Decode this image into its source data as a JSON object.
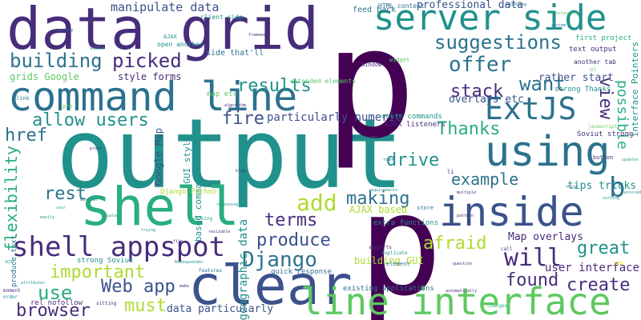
{
  "colors": {
    "background": "#ffffff",
    "palette": [
      "#440154",
      "#472d7b",
      "#3b528b",
      "#2c728e",
      "#21918c",
      "#28ae80",
      "#5ec962",
      "#addc30",
      "#fde725"
    ]
  },
  "words": [
    {
      "text": "output",
      "color": "#21918c"
    },
    {
      "text": "data grid",
      "color": "#472d7b"
    },
    {
      "text": "command line",
      "color": "#2c728e"
    },
    {
      "text": "p",
      "color": "#440154"
    },
    {
      "text": "p",
      "color": "#440154"
    },
    {
      "text": "shell",
      "color": "#28ae80"
    },
    {
      "text": "clear",
      "color": "#3b528b"
    },
    {
      "text": "inside",
      "color": "#3b528b"
    },
    {
      "text": "using",
      "color": "#2c728e"
    },
    {
      "text": "server side",
      "color": "#21918c"
    },
    {
      "text": "line interface",
      "color": "#5ec962"
    },
    {
      "text": "shell appspot",
      "color": "#472d7b"
    },
    {
      "text": "ExtJS",
      "color": "#2c728e"
    },
    {
      "text": "building",
      "color": "#2c728e"
    },
    {
      "text": "picked",
      "color": "#472d7b"
    },
    {
      "text": "suggestions",
      "color": "#2c728e"
    },
    {
      "text": "offer",
      "color": "#2c728e"
    },
    {
      "text": "want",
      "color": "#2c728e"
    },
    {
      "text": "results",
      "color": "#21918c"
    },
    {
      "text": "stack",
      "color": "#472d7b"
    },
    {
      "text": "allow users",
      "color": "#21918c"
    },
    {
      "text": "fire",
      "color": "#3b528b"
    },
    {
      "text": "Thanks",
      "color": "#28ae80"
    },
    {
      "text": "view",
      "color": "#472d7b"
    },
    {
      "text": "possible",
      "color": "#28ae80"
    },
    {
      "text": "href",
      "color": "#2c728e"
    },
    {
      "text": "drive",
      "color": "#21918c"
    },
    {
      "text": "example",
      "color": "#2c728e"
    },
    {
      "text": "add",
      "color": "#addc30"
    },
    {
      "text": "rest",
      "color": "#2c728e"
    },
    {
      "text": "terms",
      "color": "#472d7b"
    },
    {
      "text": "making",
      "color": "#2c728e"
    },
    {
      "text": "produce",
      "color": "#3b528b"
    },
    {
      "text": "Django",
      "color": "#2c728e"
    },
    {
      "text": "important",
      "color": "#addc30"
    },
    {
      "text": "afraid",
      "color": "#addc30"
    },
    {
      "text": "will",
      "color": "#472d7b"
    },
    {
      "text": "great",
      "color": "#21918c"
    },
    {
      "text": "use",
      "color": "#28ae80"
    },
    {
      "text": "Web app",
      "color": "#3b528b"
    },
    {
      "text": "found",
      "color": "#472d7b"
    },
    {
      "text": "create",
      "color": "#472d7b"
    },
    {
      "text": "browser",
      "color": "#472d7b"
    },
    {
      "text": "must",
      "color": "#addc30"
    },
    {
      "text": "flexibility",
      "color": "#28ae80"
    },
    {
      "text": "b",
      "color": "#2c728e"
    },
    {
      "text": "manipulate data",
      "color": "#3b528b"
    },
    {
      "text": "professional data",
      "color": "#3b528b"
    },
    {
      "text": "particularly numeric",
      "color": "#3b528b"
    },
    {
      "text": "Map overlays",
      "color": "#472d7b"
    },
    {
      "text": "user interface",
      "color": "#472d7b"
    },
    {
      "text": "tips tricks",
      "color": "#21918c"
    },
    {
      "text": "geographic data",
      "color": "#21918c"
    },
    {
      "text": "Google Map",
      "color": "#3b528b"
    },
    {
      "text": "overlays etc",
      "color": "#3b528b"
    },
    {
      "text": "rather start",
      "color": "#3b528b"
    },
    {
      "text": "interface Pointers",
      "color": "#21918c"
    },
    {
      "text": "grids Google",
      "color": "#5ec962"
    },
    {
      "text": "style forms",
      "color": "#472d7b"
    },
    {
      "text": "data particularly",
      "color": "#3b528b"
    },
    {
      "text": "building GUI",
      "color": "#addc30"
    },
    {
      "text": "GUI style",
      "color": "#21918c"
    },
    {
      "text": "based command",
      "color": "#21918c"
    },
    {
      "text": "AJAX based",
      "color": "#addc30"
    },
    {
      "text": "feed back",
      "color": "#2c728e"
    },
    {
      "text": "client side",
      "color": "#21918c"
    },
    {
      "text": "side that'll",
      "color": "#2c728e"
    },
    {
      "text": "first project",
      "color": "#28ae80"
    },
    {
      "text": "text output",
      "color": "#472d7b"
    },
    {
      "text": "strong Thanks",
      "color": "#21918c"
    },
    {
      "text": "Soviut strong",
      "color": "#472d7b"
    },
    {
      "text": "strong Soviut",
      "color": "#21918c"
    },
    {
      "text": "rel nofollow",
      "color": "#472d7b"
    },
    {
      "text": "produce text",
      "color": "#2c728e"
    },
    {
      "text": "quick response",
      "color": "#2c728e"
    },
    {
      "text": "existing applications",
      "color": "#2c728e"
    },
    {
      "text": "extra functions",
      "color": "#21918c"
    },
    {
      "text": "AJAX listeners",
      "color": "#472d7b"
    },
    {
      "text": "route commands",
      "color": "#21918c"
    },
    {
      "text": "Django Python",
      "color": "#addc30"
    },
    {
      "text": "map etc",
      "color": "#5ec962"
    },
    {
      "text": "open another",
      "color": "#21918c"
    },
    {
      "text": "extended elements",
      "color": "#5ec962"
    },
    {
      "text": "HTML content",
      "color": "#2c728e"
    },
    {
      "text": "another tab",
      "color": "#472d7b"
    },
    {
      "text": "Window",
      "color": "#472d7b"
    },
    {
      "text": "widget",
      "color": "#5ec962"
    },
    {
      "text": "AJAX",
      "color": "#21918c"
    },
    {
      "text": "store",
      "color": "#2c728e"
    },
    {
      "text": "button",
      "color": "#472d7b"
    },
    {
      "text": "link",
      "color": "#21918c"
    },
    {
      "text": "element",
      "color": "#2c728e"
    },
    {
      "text": "supports",
      "color": "#472d7b"
    },
    {
      "text": "sitting",
      "color": "#472d7b"
    },
    {
      "text": "duplicate",
      "color": "#21918c"
    },
    {
      "text": "working",
      "color": "#28ae80"
    },
    {
      "text": "features",
      "color": "#2c728e"
    },
    {
      "text": "javascript",
      "color": "#5ec962"
    },
    {
      "text": "changes",
      "color": "#28ae80"
    },
    {
      "text": "restored",
      "color": "#21918c"
    },
    {
      "text": "moment",
      "color": "#472d7b"
    },
    {
      "text": "order",
      "color": "#21918c"
    },
    {
      "text": "scale",
      "color": "#21918c"
    },
    {
      "text": "framework",
      "color": "#472d7b"
    },
    {
      "text": "extending",
      "color": "#5ec962"
    },
    {
      "text": "system",
      "color": "#2c728e"
    },
    {
      "text": "tab",
      "color": "#fde725"
    },
    {
      "text": "ol",
      "color": "#5ec962"
    },
    {
      "text": "li",
      "color": "#472d7b"
    },
    {
      "text": "pre",
      "color": "#5ec962"
    },
    {
      "text": "call",
      "color": "#472d7b"
    },
    {
      "text": "Roadspoonder",
      "color": "#21918c"
    },
    {
      "text": "algorithm",
      "color": "#472d7b"
    },
    {
      "text": "requirements",
      "color": "#21918c"
    },
    {
      "text": "automatically",
      "color": "#472d7b"
    },
    {
      "text": "multiple",
      "color": "#472d7b"
    },
    {
      "text": "question",
      "color": "#472d7b"
    },
    {
      "text": "attributes",
      "color": "#21918c"
    },
    {
      "text": "ascending",
      "color": "#2c728e"
    },
    {
      "text": "sorting",
      "color": "#21918c"
    },
    {
      "text": "thing",
      "color": "#2c728e"
    },
    {
      "text": "updates",
      "color": "#28ae80"
    },
    {
      "text": "pattern",
      "color": "#472d7b"
    },
    {
      "text": "discussing",
      "color": "#2c728e"
    },
    {
      "text": "reasoning",
      "color": "#21918c"
    },
    {
      "text": "resizable",
      "color": "#472d7b"
    },
    {
      "text": "dialog",
      "color": "#21918c"
    },
    {
      "text": "round",
      "color": "#2c728e"
    },
    {
      "text": "proof",
      "color": "#472d7b"
    },
    {
      "text": "mention",
      "color": "#2c728e"
    },
    {
      "text": "easily",
      "color": "#21918c"
    },
    {
      "text": "blog",
      "color": "#472d7b"
    },
    {
      "text": "trying",
      "color": "#21918c"
    },
    {
      "text": "make",
      "color": "#472d7b"
    },
    {
      "text": "hosting",
      "color": "#2c728e"
    },
    {
      "text": "user",
      "color": "#28ae80"
    },
    {
      "text": "SCOT",
      "color": "#21918c"
    },
    {
      "text": "file",
      "color": "#472d7b"
    }
  ]
}
